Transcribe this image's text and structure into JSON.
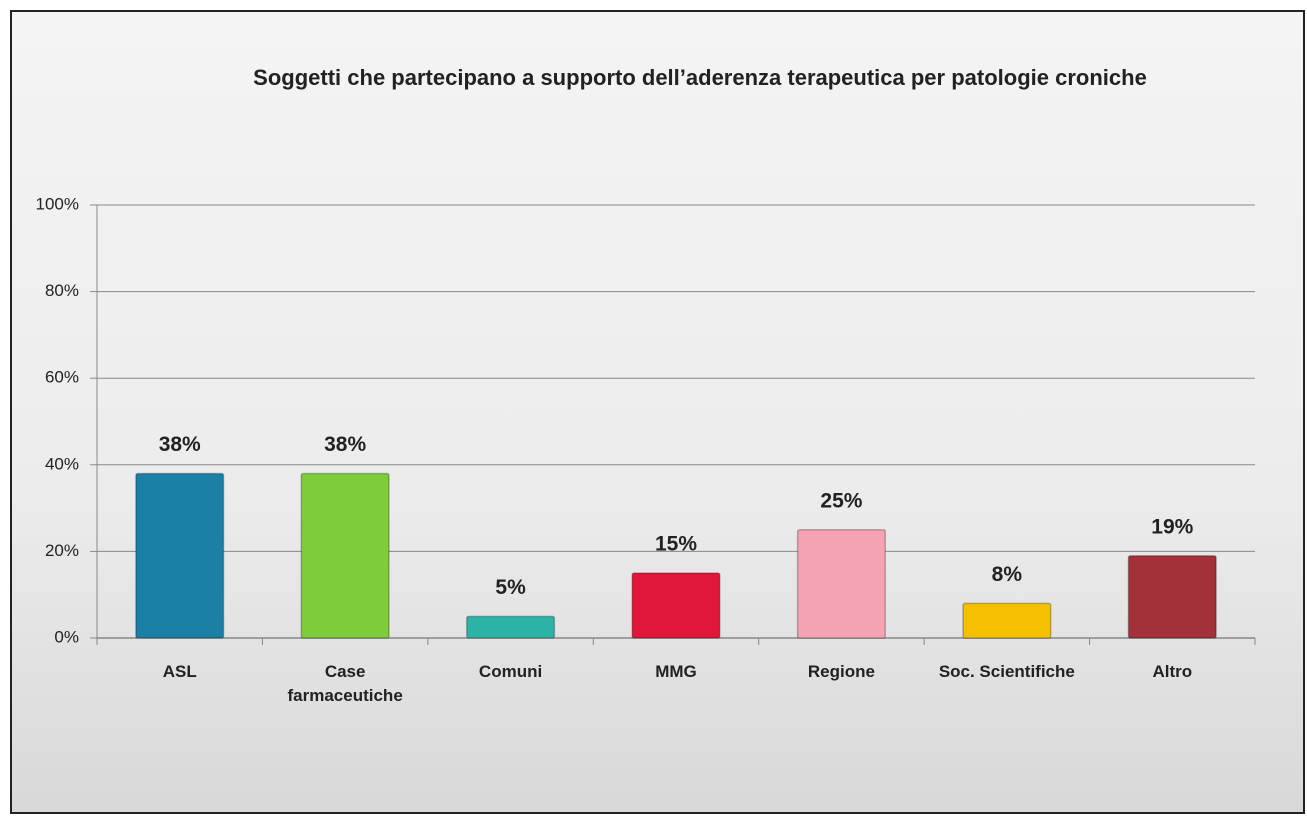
{
  "chart_data": {
    "type": "bar",
    "title": "Soggetti che partecipano a supporto dell’aderenza terapeutica per patologie croniche",
    "categories": [
      "ASL",
      "Case farmaceutiche",
      "Comuni",
      "MMG",
      "Regione",
      "Soc. Scientifiche",
      "Altro"
    ],
    "values": [
      38,
      38,
      5,
      15,
      25,
      8,
      19
    ],
    "value_labels": [
      "38%",
      "38%",
      "5%",
      "15%",
      "25%",
      "8%",
      "19%"
    ],
    "colors": [
      "#1b7fa6",
      "#7dcc3b",
      "#2bb3a6",
      "#e0173a",
      "#f4a3b3",
      "#f5c000",
      "#a3313a"
    ],
    "ylim": [
      0,
      100
    ],
    "yticks": [
      {
        "value": 0,
        "label": "0%"
      },
      {
        "value": 20,
        "label": "20%"
      },
      {
        "value": 40,
        "label": "40%"
      },
      {
        "value": 60,
        "label": "60%"
      },
      {
        "value": 80,
        "label": "80%"
      },
      {
        "value": 100,
        "label": "100%"
      }
    ],
    "grid": true
  }
}
